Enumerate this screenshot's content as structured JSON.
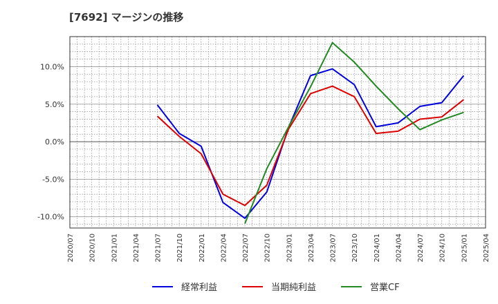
{
  "title": "[7692]  マージンの推移",
  "chart_data": {
    "type": "line",
    "title": "[7692]  マージンの推移",
    "xlabel": "",
    "ylabel": "",
    "x_ticks": [
      "2020/07",
      "2020/10",
      "2021/01",
      "2021/04",
      "2021/07",
      "2021/10",
      "2022/01",
      "2022/04",
      "2022/07",
      "2022/10",
      "2023/01",
      "2023/04",
      "2023/07",
      "2023/10",
      "2024/01",
      "2024/04",
      "2024/07",
      "2024/10",
      "2025/01",
      "2025/04"
    ],
    "y_ticks": [
      "10.0%",
      "5.0%",
      "0.0%",
      "-5.0%",
      "-10.0%"
    ],
    "y_tick_values": [
      10,
      5,
      0,
      -5,
      -10
    ],
    "ylim": [
      -11.5,
      14
    ],
    "grid": true,
    "legend_position": "bottom",
    "series": [
      {
        "name": "経常利益",
        "color": "#0000dd",
        "x": [
          "2021/07",
          "2021/10",
          "2022/01",
          "2022/04",
          "2022/07",
          "2022/10",
          "2023/01",
          "2023/04",
          "2023/07",
          "2023/10",
          "2024/01",
          "2024/04",
          "2024/07",
          "2024/10",
          "2025/01"
        ],
        "values": [
          4.9,
          1.1,
          -0.6,
          -8.1,
          -10.2,
          -6.7,
          1.9,
          8.8,
          9.7,
          7.6,
          2.0,
          2.5,
          4.7,
          5.2,
          8.8
        ]
      },
      {
        "name": "当期純利益",
        "color": "#dd0000",
        "x": [
          "2021/07",
          "2021/10",
          "2022/01",
          "2022/04",
          "2022/07",
          "2022/10",
          "2023/01",
          "2023/04",
          "2023/07",
          "2023/10",
          "2024/01",
          "2024/04",
          "2024/07",
          "2024/10",
          "2025/01"
        ],
        "values": [
          3.4,
          0.7,
          -1.6,
          -7.0,
          -8.5,
          -5.8,
          1.7,
          6.4,
          7.4,
          6.0,
          1.1,
          1.4,
          3.0,
          3.3,
          5.6
        ]
      },
      {
        "name": "営業CF",
        "color": "#228822",
        "x": [
          "2022/07",
          "2022/10",
          "2023/01",
          "2023/04",
          "2023/07",
          "2023/10",
          "2024/01",
          "2024/04",
          "2024/07",
          "2024/10",
          "2025/01"
        ],
        "values": [
          -10.9,
          -3.6,
          2.0,
          7.3,
          13.2,
          10.6,
          7.4,
          4.4,
          1.6,
          2.9,
          3.9
        ]
      }
    ]
  }
}
